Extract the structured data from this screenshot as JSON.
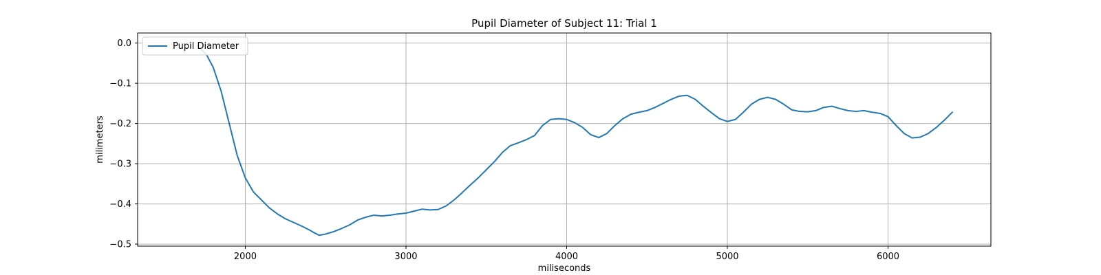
{
  "chart_data": {
    "type": "line",
    "title": "Pupil Diameter of Subject 11: Trial 1",
    "xlabel": "miliseconds",
    "ylabel": "milimeters",
    "xlim": [
      1330,
      6640
    ],
    "ylim": [
      -0.505,
      0.025
    ],
    "xticks": [
      2000,
      3000,
      4000,
      5000,
      6000
    ],
    "yticks": [
      0.0,
      -0.1,
      -0.2,
      -0.3,
      -0.4,
      -0.5
    ],
    "grid": true,
    "legend_position": "upper left",
    "series": [
      {
        "name": "Pupil Diameter",
        "color": "#1f77b4",
        "x": [
          1700,
          1760,
          1800,
          1850,
          1900,
          1950,
          2000,
          2050,
          2100,
          2150,
          2200,
          2250,
          2300,
          2350,
          2400,
          2430,
          2460,
          2500,
          2550,
          2600,
          2650,
          2700,
          2750,
          2800,
          2850,
          2900,
          2950,
          3000,
          3050,
          3100,
          3150,
          3200,
          3250,
          3300,
          3350,
          3400,
          3450,
          3500,
          3550,
          3600,
          3650,
          3700,
          3750,
          3800,
          3850,
          3900,
          3950,
          4000,
          4050,
          4100,
          4150,
          4200,
          4250,
          4300,
          4350,
          4400,
          4450,
          4500,
          4550,
          4600,
          4650,
          4700,
          4750,
          4800,
          4850,
          4900,
          4950,
          5000,
          5050,
          5100,
          5150,
          5200,
          5250,
          5300,
          5350,
          5400,
          5450,
          5500,
          5550,
          5600,
          5650,
          5700,
          5750,
          5800,
          5850,
          5900,
          5950,
          6000,
          6050,
          6100,
          6150,
          6200,
          6250,
          6300,
          6350,
          6400
        ],
        "y": [
          -0.005,
          -0.03,
          -0.06,
          -0.12,
          -0.2,
          -0.28,
          -0.335,
          -0.37,
          -0.39,
          -0.41,
          -0.425,
          -0.437,
          -0.446,
          -0.455,
          -0.465,
          -0.472,
          -0.478,
          -0.475,
          -0.469,
          -0.461,
          -0.452,
          -0.44,
          -0.433,
          -0.428,
          -0.43,
          -0.428,
          -0.425,
          -0.423,
          -0.418,
          -0.413,
          -0.415,
          -0.414,
          -0.405,
          -0.39,
          -0.372,
          -0.353,
          -0.335,
          -0.315,
          -0.295,
          -0.272,
          -0.255,
          -0.248,
          -0.24,
          -0.23,
          -0.205,
          -0.19,
          -0.188,
          -0.19,
          -0.198,
          -0.21,
          -0.228,
          -0.235,
          -0.225,
          -0.205,
          -0.188,
          -0.177,
          -0.172,
          -0.168,
          -0.16,
          -0.15,
          -0.14,
          -0.132,
          -0.13,
          -0.14,
          -0.157,
          -0.173,
          -0.188,
          -0.195,
          -0.19,
          -0.172,
          -0.152,
          -0.14,
          -0.135,
          -0.14,
          -0.152,
          -0.166,
          -0.17,
          -0.171,
          -0.168,
          -0.16,
          -0.157,
          -0.163,
          -0.168,
          -0.17,
          -0.168,
          -0.172,
          -0.175,
          -0.183,
          -0.205,
          -0.225,
          -0.236,
          -0.234,
          -0.225,
          -0.21,
          -0.192,
          -0.172
        ]
      }
    ]
  }
}
